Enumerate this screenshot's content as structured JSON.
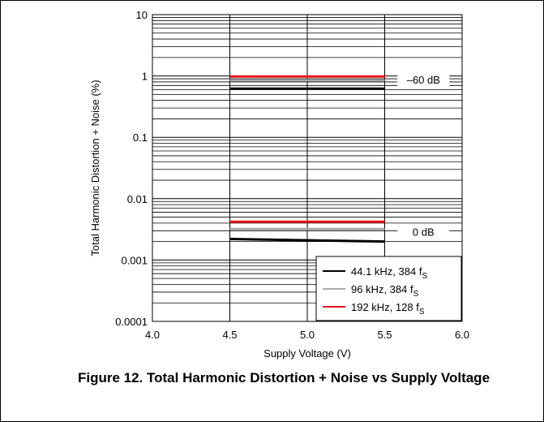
{
  "figure": {
    "caption": "Figure 12. Total Harmonic Distortion + Noise vs Supply Voltage"
  },
  "chart_data": {
    "type": "line",
    "title": "",
    "xlabel": "Supply Voltage (V)",
    "ylabel": "Total Harmonic Distortion + Noise (%)",
    "xlim": [
      4.0,
      6.0
    ],
    "ylim": [
      0.0001,
      10
    ],
    "y_scale": "log",
    "x_ticks": [
      "4.0",
      "4.5",
      "5.0",
      "5.5",
      "6.0"
    ],
    "y_ticks": [
      "0.0001",
      "0.001",
      "0.01",
      "0.1",
      "1",
      "10"
    ],
    "grid": true,
    "legend_position": "bottom-right",
    "series": [
      {
        "name": "44.1 kHz, 384 f",
        "name_sub": "S",
        "color": "#000000",
        "group": "-60 dB",
        "x": [
          4.5,
          5.5
        ],
        "y": [
          0.62,
          0.62
        ]
      },
      {
        "name": "96  kHz, 384 f",
        "name_sub": "S",
        "color": "#aaaaaa",
        "group": "-60 dB",
        "x": [
          4.5,
          5.5
        ],
        "y": [
          0.85,
          0.85
        ]
      },
      {
        "name": "192 kHz, 128 f",
        "name_sub": "S",
        "color": "#e8141b",
        "group": "-60 dB",
        "x": [
          4.5,
          5.5
        ],
        "y": [
          0.98,
          0.98
        ]
      },
      {
        "name": "44.1 kHz, 384 f",
        "name_sub": "S",
        "color": "#000000",
        "group": "0 dB",
        "x": [
          4.5,
          5.5
        ],
        "y": [
          0.0022,
          0.002
        ]
      },
      {
        "name": "96  kHz, 384 f",
        "name_sub": "S",
        "color": "#aaaaaa",
        "group": "0 dB",
        "x": [
          4.5,
          5.5
        ],
        "y": [
          0.0032,
          0.0032
        ]
      },
      {
        "name": "192 kHz, 128 f",
        "name_sub": "S",
        "color": "#e8141b",
        "group": "0 dB",
        "x": [
          4.5,
          5.5
        ],
        "y": [
          0.0042,
          0.0042
        ]
      }
    ],
    "annotations": [
      {
        "text": "–60 dB",
        "x": 5.75,
        "y": 0.85
      },
      {
        "text": "0 dB",
        "x": 5.75,
        "y": 0.0028
      }
    ]
  }
}
